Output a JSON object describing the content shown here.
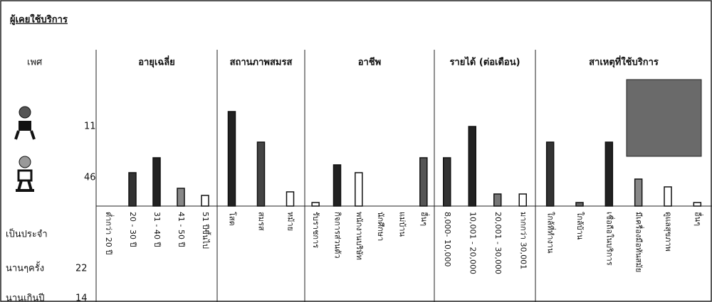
{
  "title": "ผู้เคยใช้บริการ",
  "gender": {
    "label": "เพศ",
    "values": [
      11,
      46
    ]
  },
  "frequency": [
    {
      "label": "เป็นประจำ"
    },
    {
      "label": "นานๆครั้ง",
      "value": 22
    },
    {
      "label": "นานเกินปี",
      "value": 14
    }
  ],
  "chart_data": [
    {
      "type": "bar",
      "title": "อายุเฉลี่ย",
      "categories": [
        "ต่ำกว่า 20 ปี",
        "20 - 30 ปี",
        "31 - 40 ปี",
        "41 - 50 ปี",
        "51 ปีขึ้นไป"
      ],
      "values": [
        0,
        47,
        68,
        25,
        15
      ],
      "colors": [
        "#333",
        "#333",
        "#222",
        "#888",
        "#fff"
      ]
    },
    {
      "type": "bar",
      "title": "สถานภาพสมรส",
      "categories": [
        "โสด",
        "สมรส",
        "หม้าย"
      ],
      "values": [
        133,
        90,
        20
      ],
      "colors": [
        "#222",
        "#444",
        "#fff"
      ]
    },
    {
      "type": "bar",
      "title": "อาชีพ",
      "categories": [
        "รับราชการ",
        "กิจการส่วนตัว",
        "พนักงานบริษัท",
        "นักศึกษา",
        "แม่บ้าน",
        "อื่นๆ"
      ],
      "values": [
        5,
        58,
        47,
        0,
        0,
        68
      ],
      "colors": [
        "#fff",
        "#222",
        "#fff",
        "#888",
        "#888",
        "#555"
      ]
    },
    {
      "type": "bar",
      "title": "รายได้ (ต่อเดือน)",
      "categories": [
        "8,000- 10,000",
        "10,001 - 20,000",
        "20,001 - 30,000",
        "มากกว่า 30,001"
      ],
      "values": [
        68,
        112,
        17,
        17
      ],
      "colors": [
        "#333",
        "#222",
        "#777",
        "#fff"
      ]
    },
    {
      "type": "bar",
      "title": "สาเหตุที่ใช้บริการ",
      "categories": [
        "ใกล้ที่ทำงาน",
        "ใกล้บ้าน",
        "เชื่อถือในบริการ",
        "มีเครื่องมือทันสมัย",
        "ดูแลสุขภาพ",
        "อื่นๆ"
      ],
      "values": [
        90,
        5,
        90,
        38,
        27,
        5
      ],
      "colors": [
        "#333",
        "#666",
        "#222",
        "#888",
        "#fff",
        "#fff"
      ]
    }
  ]
}
